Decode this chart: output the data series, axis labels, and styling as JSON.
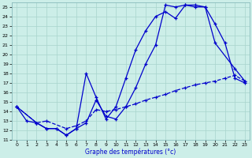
{
  "title": "Graphe des températures (°c)",
  "xlabel": "Graphe des températures (°c)",
  "bg_color": "#cceee8",
  "plot_bg_color": "#cceee8",
  "line_color": "#0000cc",
  "xlim": [
    -0.5,
    23.5
  ],
  "ylim": [
    11,
    25.5
  ],
  "xticks": [
    0,
    1,
    2,
    3,
    4,
    5,
    6,
    7,
    8,
    9,
    10,
    11,
    12,
    13,
    14,
    15,
    16,
    17,
    18,
    19,
    20,
    21,
    22,
    23
  ],
  "yticks": [
    11,
    12,
    13,
    14,
    15,
    16,
    17,
    18,
    19,
    20,
    21,
    22,
    23,
    24,
    25
  ],
  "line1_x": [
    0,
    1,
    2,
    3,
    4,
    5,
    6,
    7,
    8,
    9,
    10,
    11,
    12,
    13,
    14,
    15,
    16,
    17,
    18,
    19,
    20,
    21,
    22,
    23
  ],
  "line1_y": [
    14.5,
    13.0,
    12.8,
    12.2,
    12.2,
    11.5,
    12.2,
    18.0,
    15.5,
    13.2,
    14.5,
    17.5,
    20.5,
    22.5,
    24.0,
    24.5,
    23.8,
    25.2,
    25.0,
    25.0,
    23.2,
    21.2,
    17.5,
    17.0
  ],
  "line2_x": [
    0,
    2,
    3,
    4,
    5,
    6,
    7,
    8,
    9,
    10,
    11,
    12,
    13,
    14,
    15,
    16,
    17,
    18,
    19,
    20,
    22,
    23
  ],
  "line2_y": [
    14.5,
    12.8,
    12.2,
    12.2,
    11.5,
    12.2,
    12.8,
    15.2,
    13.5,
    13.2,
    14.5,
    16.5,
    19.0,
    21.0,
    25.2,
    25.0,
    25.2,
    25.2,
    25.0,
    21.2,
    18.5,
    17.2
  ],
  "line3_x": [
    0,
    2,
    3,
    5,
    6,
    7,
    8,
    9,
    10,
    11,
    12,
    13,
    14,
    15,
    16,
    17,
    18,
    19,
    20,
    21,
    22,
    23
  ],
  "line3_y": [
    14.5,
    12.8,
    13.0,
    12.2,
    12.5,
    13.0,
    14.2,
    14.0,
    14.2,
    14.5,
    14.8,
    15.2,
    15.5,
    15.8,
    16.2,
    16.5,
    16.8,
    17.0,
    17.2,
    17.5,
    17.8,
    17.2
  ],
  "line1_style": "-",
  "line2_style": "-",
  "line3_style": "--"
}
